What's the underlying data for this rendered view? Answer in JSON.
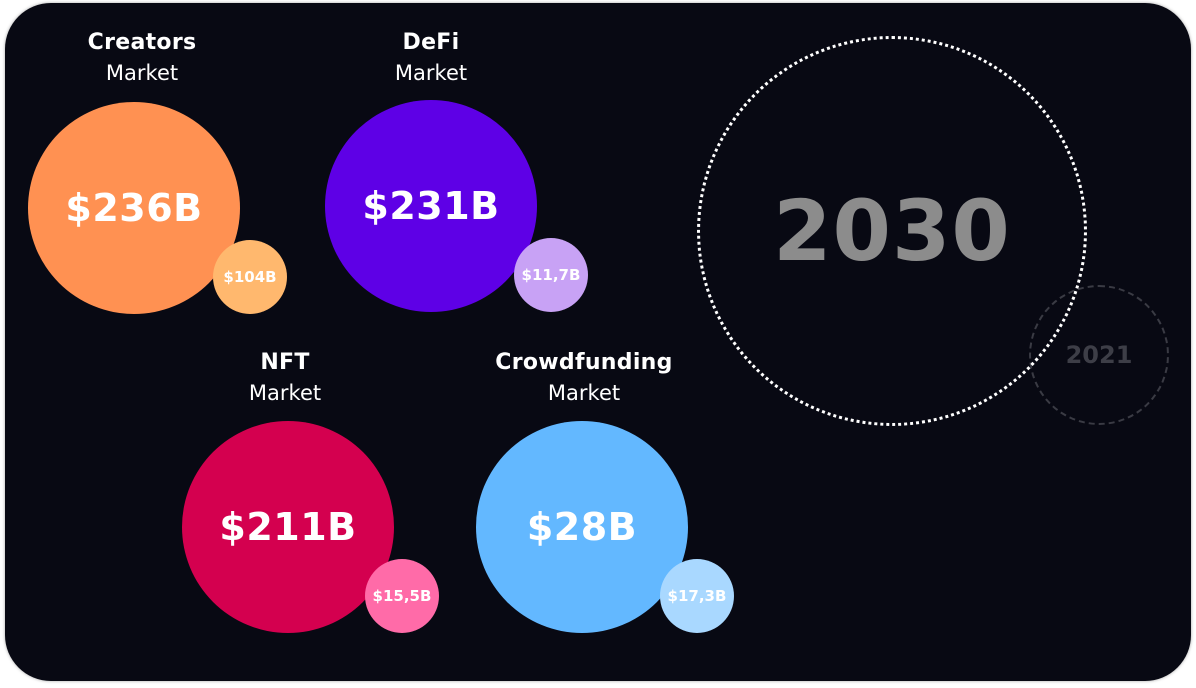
{
  "chart_data": {
    "type": "bubble",
    "title": "",
    "years": {
      "primary": "2030",
      "secondary": "2021"
    },
    "series": [
      {
        "name": "2030",
        "values": [
          236,
          231,
          211,
          28
        ],
        "labels": [
          "$236B",
          "$231B",
          "$211B",
          "$28B"
        ]
      },
      {
        "name": "2021",
        "values": [
          104,
          11.7,
          15.5,
          17.3
        ],
        "labels": [
          "$104B",
          "$11,7B",
          "$15,5B",
          "$17,3B"
        ]
      }
    ],
    "markets": [
      {
        "name": "Creators",
        "sub": "Market",
        "value_2030": "$236B",
        "value_2021": "$104B",
        "color_2030": "#FF9152",
        "color_2021": "#FFB86E"
      },
      {
        "name": "DeFi",
        "sub": "Market",
        "value_2030": "$231B",
        "value_2021": "$11,7B",
        "color_2030": "#5E00E6",
        "color_2021": "#C8A2F5"
      },
      {
        "name": "NFT",
        "sub": "Market",
        "value_2030": "$211B",
        "value_2021": "$15,5B",
        "color_2030": "#D4004F",
        "color_2021": "#FF6BA8"
      },
      {
        "name": "Crowdfunding",
        "sub": "Market",
        "value_2030": "$28B",
        "value_2021": "$17,3B",
        "color_2030": "#63B8FF",
        "color_2021": "#A9D8FF"
      }
    ]
  }
}
